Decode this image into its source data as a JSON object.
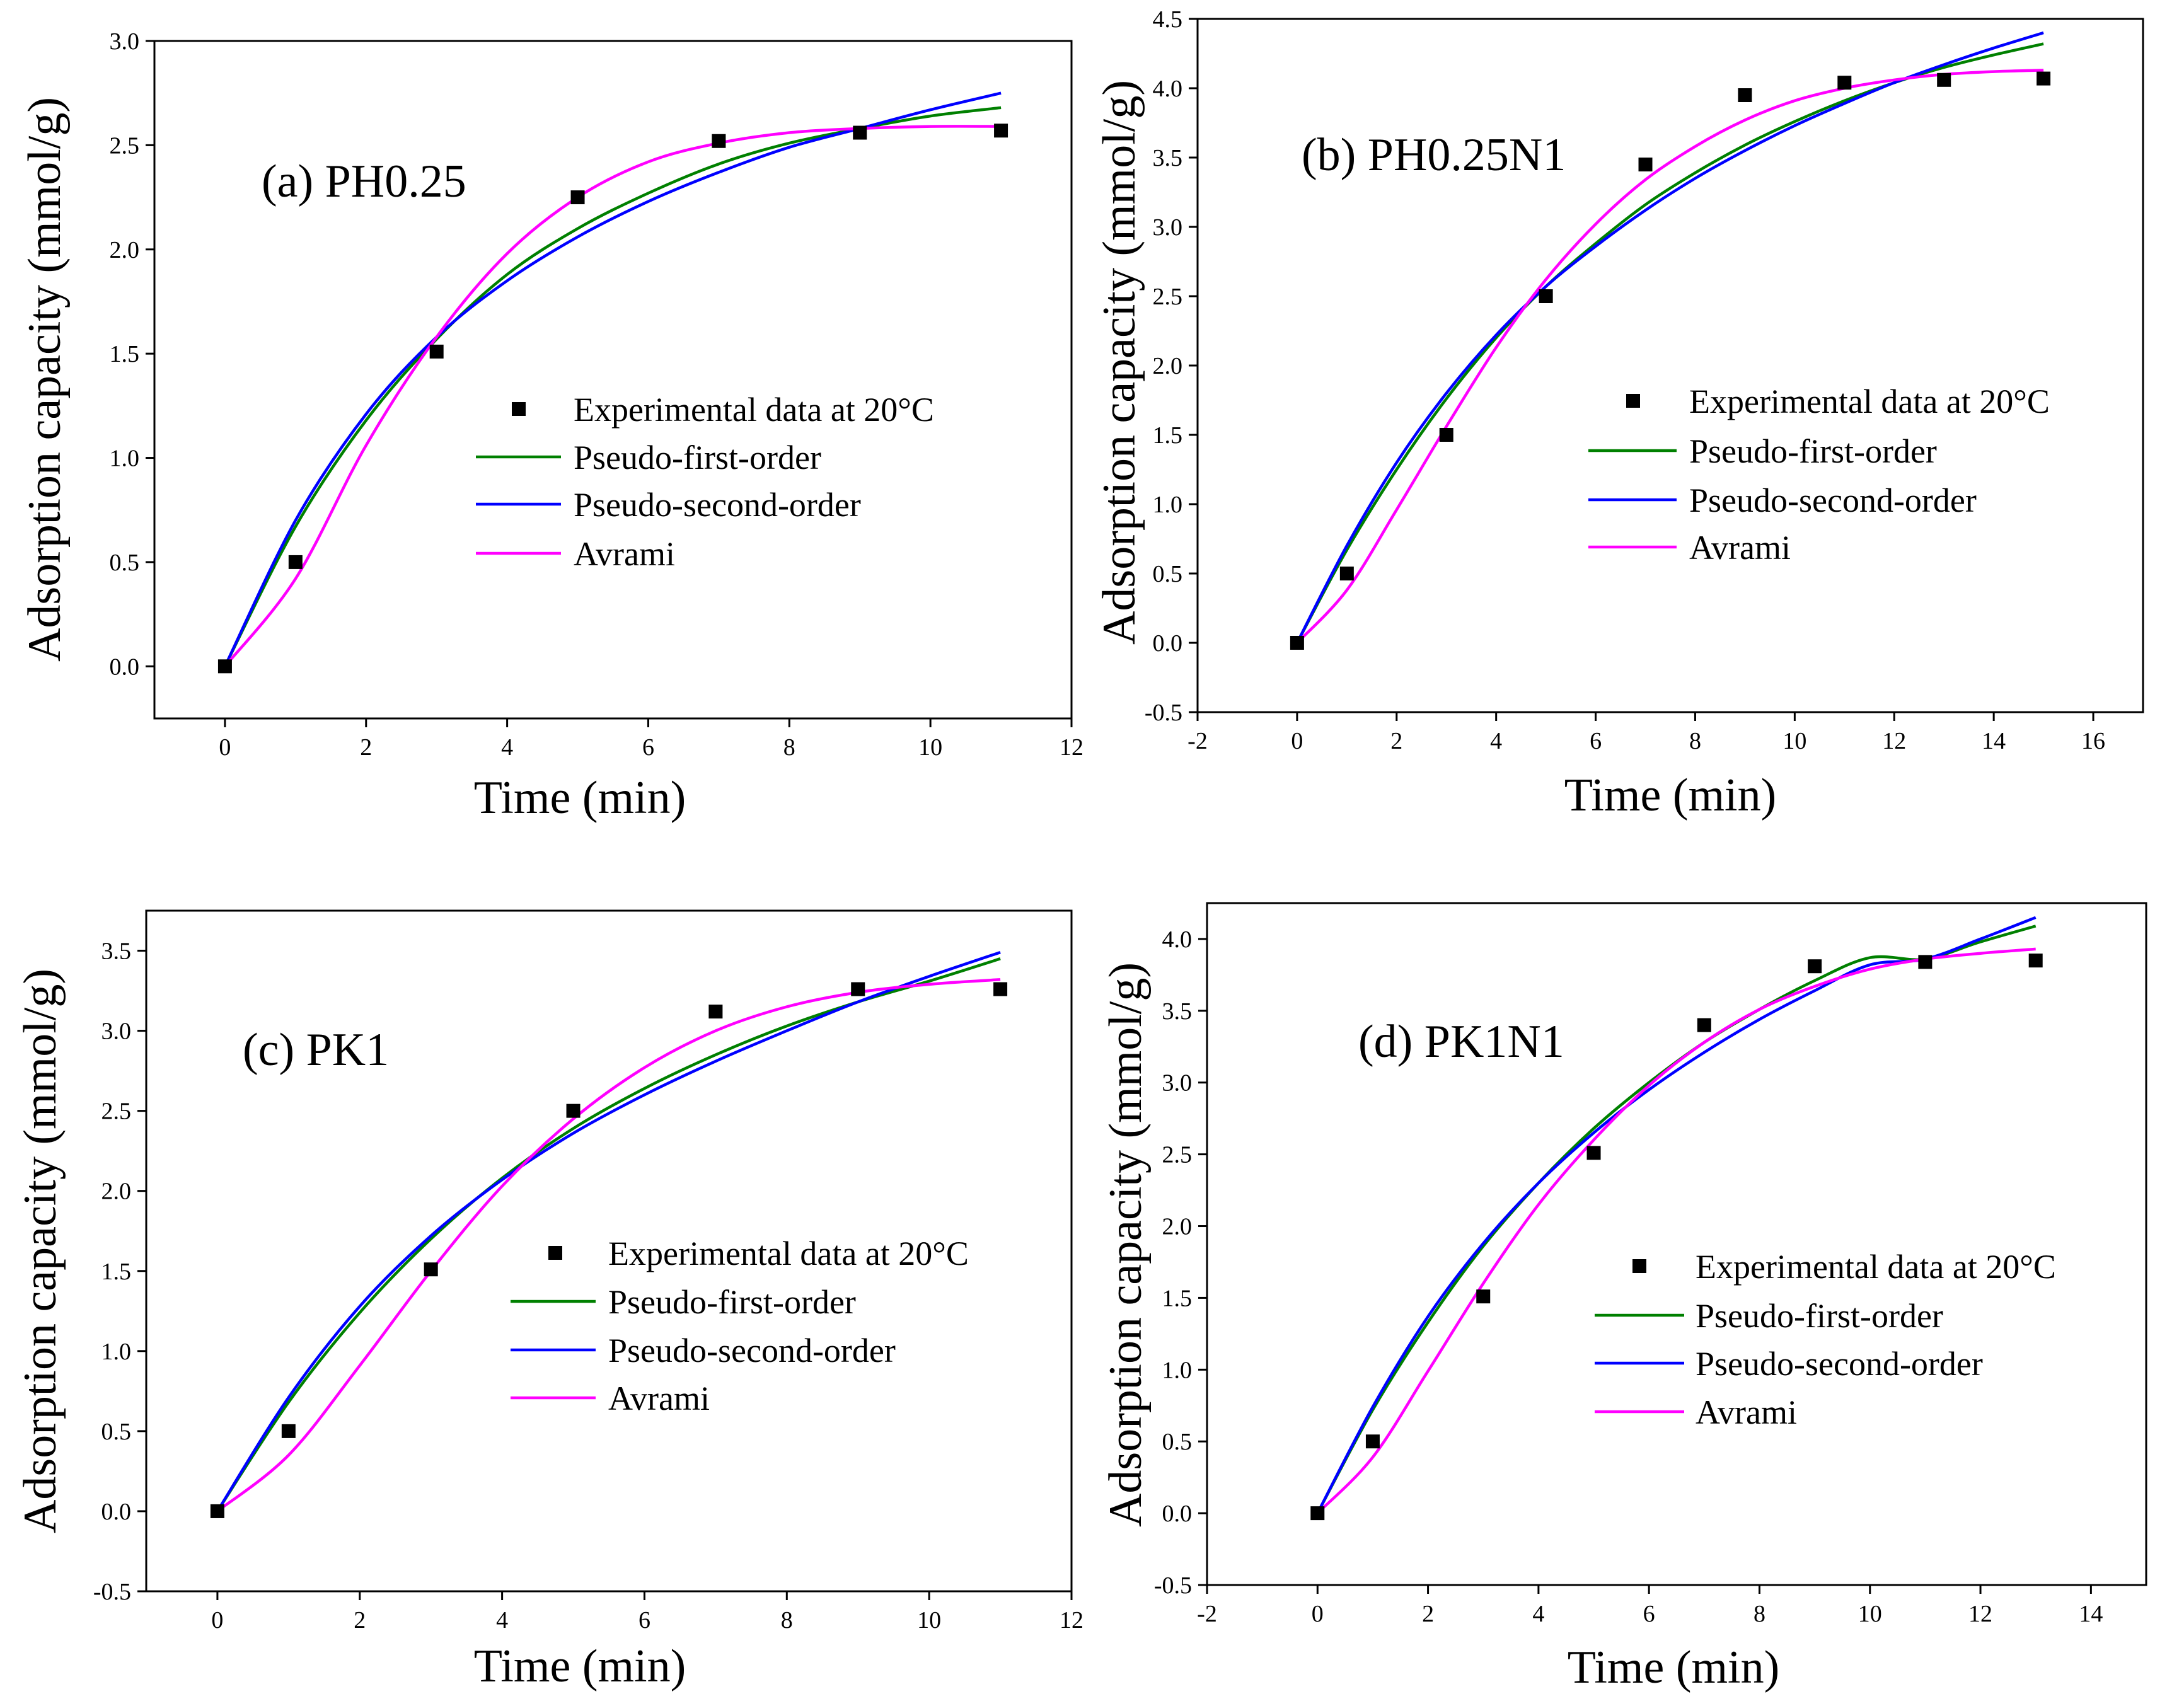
{
  "chart_data": [
    {
      "type": "scatter",
      "id": "a",
      "title": "(a) PH0.25",
      "xlabel": "Time (min)",
      "ylabel": "Adsorption capacity (mmol/g)",
      "xlim": [
        -1,
        12
      ],
      "ylim": [
        -0.25,
        3.0
      ],
      "xticks": [
        "0",
        "2",
        "4",
        "6",
        "8",
        "10",
        "12"
      ],
      "yticks": [
        "0.0",
        "0.5",
        "1.0",
        "1.5",
        "2.0",
        "2.5",
        "3.0"
      ],
      "legend_position": "center-right",
      "series": [
        {
          "name": "Experimental data at 20°C",
          "kind": "points",
          "color": "#000000",
          "x": [
            0,
            1,
            3,
            5,
            7,
            9,
            11
          ],
          "y": [
            0.0,
            0.5,
            1.51,
            2.25,
            2.52,
            2.56,
            2.57
          ]
        },
        {
          "name": "Pseudo-first-order",
          "kind": "curve",
          "color": "#008000",
          "x": [
            0,
            1,
            2,
            3,
            4,
            5,
            6,
            7,
            8,
            9,
            10,
            11
          ],
          "y": [
            0.0,
            0.67,
            1.18,
            1.57,
            1.88,
            2.1,
            2.27,
            2.41,
            2.51,
            2.58,
            2.64,
            2.68
          ]
        },
        {
          "name": "Pseudo-second-order",
          "kind": "curve",
          "color": "#0000ff",
          "x": [
            0,
            1,
            2,
            3,
            4,
            5,
            6,
            7,
            8,
            9,
            10,
            11
          ],
          "y": [
            0.0,
            0.7,
            1.21,
            1.58,
            1.85,
            2.06,
            2.23,
            2.37,
            2.49,
            2.58,
            2.67,
            2.75
          ]
        },
        {
          "name": "Avrami",
          "kind": "curve",
          "color": "#ff00ff",
          "x": [
            0,
            1,
            2,
            3,
            4,
            5,
            6,
            7,
            8,
            9,
            10,
            11
          ],
          "y": [
            0.0,
            0.42,
            1.06,
            1.58,
            1.98,
            2.25,
            2.42,
            2.51,
            2.56,
            2.58,
            2.59,
            2.59
          ]
        }
      ]
    },
    {
      "type": "scatter",
      "id": "b",
      "title": "(b) PH0.25N1",
      "xlabel": "Time (min)",
      "ylabel": "Adsorption capacity (mmol/g)",
      "xlim": [
        -2,
        17
      ],
      "ylim": [
        -0.5,
        4.5
      ],
      "xticks": [
        "-2",
        "0",
        "2",
        "4",
        "6",
        "8",
        "10",
        "12",
        "14",
        "16"
      ],
      "yticks": [
        "-0.5",
        "0.0",
        "0.5",
        "1.0",
        "1.5",
        "2.0",
        "2.5",
        "3.0",
        "3.5",
        "4.0",
        "4.5"
      ],
      "legend_position": "center-right",
      "series": [
        {
          "name": "Experimental data at 20°C",
          "kind": "points",
          "color": "#000000",
          "x": [
            0,
            1,
            3,
            5,
            7,
            9,
            11,
            13,
            15
          ],
          "y": [
            0.0,
            0.5,
            1.5,
            2.5,
            3.45,
            3.95,
            4.04,
            4.06,
            4.07
          ]
        },
        {
          "name": "Pseudo-first-order",
          "kind": "curve",
          "color": "#008000",
          "x": [
            0,
            1,
            2,
            3,
            4,
            5,
            6,
            7,
            8,
            9,
            10,
            11,
            12,
            13,
            14,
            15
          ],
          "y": [
            0.0,
            0.67,
            1.25,
            1.76,
            2.2,
            2.57,
            2.88,
            3.16,
            3.39,
            3.59,
            3.76,
            3.91,
            4.04,
            4.15,
            4.24,
            4.32
          ]
        },
        {
          "name": "Pseudo-second-order",
          "kind": "curve",
          "color": "#0000ff",
          "x": [
            0,
            1,
            2,
            3,
            4,
            5,
            6,
            7,
            8,
            9,
            10,
            11,
            12,
            13,
            14,
            15
          ],
          "y": [
            0.0,
            0.7,
            1.3,
            1.8,
            2.22,
            2.57,
            2.86,
            3.12,
            3.35,
            3.55,
            3.73,
            3.89,
            4.04,
            4.17,
            4.29,
            4.4
          ]
        },
        {
          "name": "Avrami",
          "kind": "curve",
          "color": "#ff00ff",
          "x": [
            0,
            1,
            2,
            3,
            4,
            5,
            6,
            7,
            8,
            9,
            10,
            11,
            12,
            13,
            14,
            15
          ],
          "y": [
            0.0,
            0.38,
            0.96,
            1.56,
            2.13,
            2.62,
            3.02,
            3.34,
            3.58,
            3.77,
            3.91,
            4.0,
            4.06,
            4.1,
            4.12,
            4.13
          ]
        }
      ]
    },
    {
      "type": "scatter",
      "id": "c",
      "title": "(c) PK1",
      "xlabel": "Time (min)",
      "ylabel": "Adsorption capacity (mmol/g)",
      "xlim": [
        -1,
        12
      ],
      "ylim": [
        -0.5,
        3.75
      ],
      "xticks": [
        "0",
        "2",
        "4",
        "6",
        "8",
        "10",
        "12"
      ],
      "yticks": [
        "-0.5",
        "0.0",
        "0.5",
        "1.0",
        "1.5",
        "2.0",
        "2.5",
        "3.0",
        "3.5"
      ],
      "legend_position": "center-right",
      "series": [
        {
          "name": "Experimental data at 20°C",
          "kind": "points",
          "color": "#000000",
          "x": [
            0,
            1,
            3,
            5,
            7,
            9,
            11
          ],
          "y": [
            0.0,
            0.5,
            1.51,
            2.5,
            3.12,
            3.26,
            3.26
          ]
        },
        {
          "name": "Pseudo-first-order",
          "kind": "curve",
          "color": "#008000",
          "x": [
            0,
            1,
            2,
            3,
            4,
            5,
            6,
            7,
            8,
            9,
            10,
            11
          ],
          "y": [
            0.0,
            0.68,
            1.24,
            1.7,
            2.08,
            2.39,
            2.64,
            2.85,
            3.03,
            3.18,
            3.31,
            3.45
          ]
        },
        {
          "name": "Pseudo-second-order",
          "kind": "curve",
          "color": "#0000ff",
          "x": [
            0,
            1,
            2,
            3,
            4,
            5,
            6,
            7,
            8,
            9,
            10,
            11
          ],
          "y": [
            0.0,
            0.71,
            1.28,
            1.72,
            2.07,
            2.36,
            2.6,
            2.81,
            3.0,
            3.18,
            3.34,
            3.49
          ]
        },
        {
          "name": "Avrami",
          "kind": "curve",
          "color": "#ff00ff",
          "x": [
            0,
            1,
            2,
            3,
            4,
            5,
            6,
            7,
            8,
            9,
            10,
            11
          ],
          "y": [
            0.0,
            0.35,
            0.91,
            1.5,
            2.03,
            2.45,
            2.77,
            3.0,
            3.15,
            3.24,
            3.29,
            3.32
          ]
        }
      ]
    },
    {
      "type": "scatter",
      "id": "d",
      "title": "(d) PK1N1",
      "xlabel": "Time (min)",
      "ylabel": "Adsorption capacity (mmol/g)",
      "xlim": [
        -2,
        15
      ],
      "ylim": [
        -0.5,
        4.25
      ],
      "xticks": [
        "-2",
        "0",
        "2",
        "4",
        "6",
        "8",
        "10",
        "12",
        "14"
      ],
      "yticks": [
        "-0.5",
        "0.0",
        "0.5",
        "1.0",
        "1.5",
        "2.0",
        "2.5",
        "3.0",
        "3.5",
        "4.0"
      ],
      "legend_position": "center-right",
      "series": [
        {
          "name": "Experimental data at 20°C",
          "kind": "points",
          "color": "#000000",
          "x": [
            0,
            1,
            3,
            5,
            7,
            9,
            11,
            13
          ],
          "y": [
            0.0,
            0.5,
            1.51,
            2.51,
            3.4,
            3.81,
            3.84,
            3.85
          ]
        },
        {
          "name": "Pseudo-first-order",
          "kind": "curve",
          "color": "#008000",
          "x": [
            0,
            1,
            2,
            3,
            4,
            5,
            6,
            7,
            8,
            9,
            10,
            11,
            12,
            13
          ],
          "y": [
            0.0,
            0.72,
            1.33,
            1.86,
            2.3,
            2.68,
            3.0,
            3.28,
            3.51,
            3.71,
            3.87,
            3.86,
            3.98,
            4.09
          ]
        },
        {
          "name": "Pseudo-second-order",
          "kind": "curve",
          "color": "#0000ff",
          "x": [
            0,
            1,
            2,
            3,
            4,
            5,
            6,
            7,
            8,
            9,
            10,
            11,
            12,
            13
          ],
          "y": [
            0.0,
            0.74,
            1.37,
            1.88,
            2.3,
            2.65,
            2.95,
            3.21,
            3.44,
            3.64,
            3.82,
            3.86,
            4.0,
            4.15
          ]
        },
        {
          "name": "Avrami",
          "kind": "curve",
          "color": "#ff00ff",
          "x": [
            0,
            1,
            2,
            3,
            4,
            5,
            6,
            7,
            8,
            9,
            10,
            11,
            12,
            13
          ],
          "y": [
            0.0,
            0.39,
            0.99,
            1.6,
            2.15,
            2.6,
            2.98,
            3.28,
            3.51,
            3.67,
            3.79,
            3.86,
            3.9,
            3.93
          ]
        }
      ]
    }
  ]
}
